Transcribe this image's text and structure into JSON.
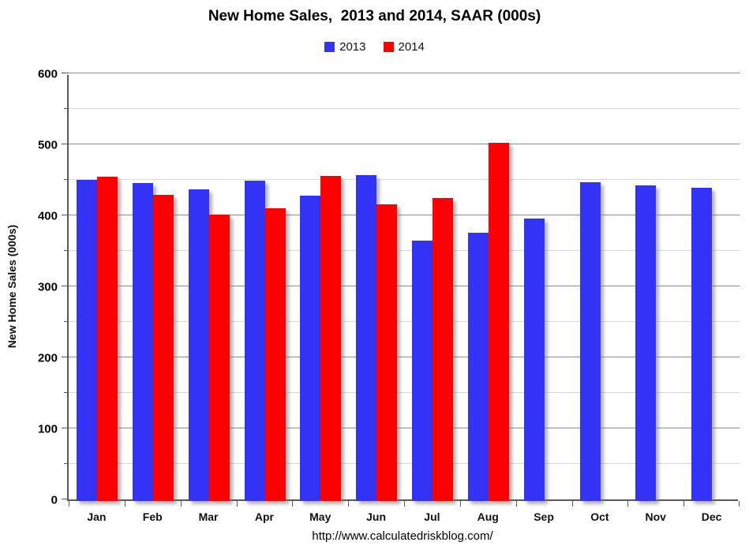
{
  "chart_data": {
    "type": "bar",
    "title": "New Home Sales,  2013 and 2014, SAAR (000s)",
    "ylabel": "New Home Sales (000s)",
    "xlabel": "",
    "footer_url": "http://www.calculatedriskblog.com/",
    "categories": [
      "Jan",
      "Feb",
      "Mar",
      "Apr",
      "May",
      "Jun",
      "Jul",
      "Aug",
      "Sep",
      "Oct",
      "Nov",
      "Dec"
    ],
    "series": [
      {
        "name": "2013",
        "color": "#3333F5",
        "values": [
          452,
          448,
          439,
          451,
          430,
          459,
          367,
          378,
          398,
          449,
          445,
          441
        ]
      },
      {
        "name": "2014",
        "color": "#FF0000",
        "values": [
          457,
          431,
          403,
          412,
          458,
          418,
          427,
          504,
          null,
          null,
          null,
          null
        ]
      }
    ],
    "ylim": [
      0,
      600
    ],
    "ytick_major_interval": 100,
    "ytick_minor_interval": 50,
    "ytick_labels": [
      "0",
      "100",
      "200",
      "300",
      "400",
      "500",
      "600"
    ],
    "grid": "horizontal minor+major",
    "legend_position": "top-center"
  },
  "colors": {
    "series_2013": "#3333F5",
    "series_2014": "#FF0000",
    "major_gridline": "#8C8C8C",
    "minor_gridline": "#D9D9D9",
    "axis_line": "#595959",
    "text": "#000000",
    "background": "#FFFFFF"
  }
}
